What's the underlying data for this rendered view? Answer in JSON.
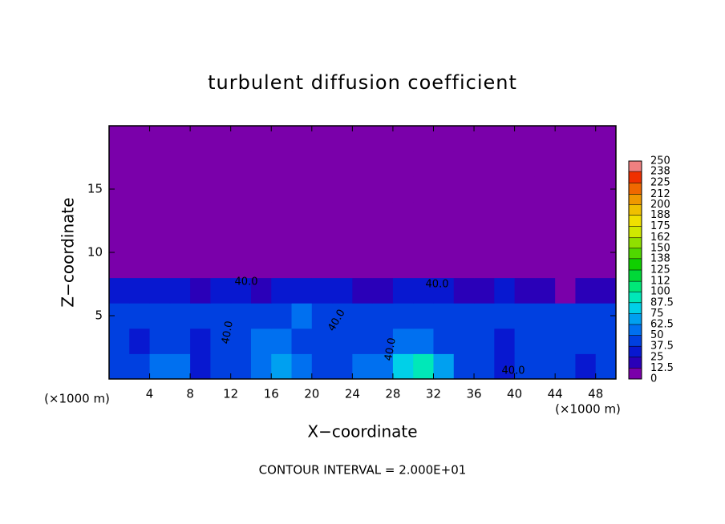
{
  "chart_data": {
    "type": "heatmap",
    "title": "turbulent diffusion coefficient",
    "x_label": "X−coordinate",
    "y_label": "Z−coordinate",
    "x_unit": "(×1000 m)",
    "y_unit": "(×1000 m)",
    "footer": "CONTOUR INTERVAL = 2.000E+01",
    "annotations": [
      "40.0",
      "40.0",
      "40.0",
      "40.0",
      "40.0",
      "40.0"
    ],
    "xlim": [
      0,
      50
    ],
    "ylim": [
      0,
      20
    ],
    "xticks": [
      4,
      8,
      12,
      16,
      20,
      24,
      28,
      32,
      36,
      40,
      44,
      48
    ],
    "yticks": [
      5,
      10,
      15
    ],
    "values": [
      [
        45,
        40,
        55,
        50,
        35,
        40,
        45,
        60,
        70,
        55,
        40,
        45,
        50,
        60,
        75,
        90,
        65,
        40,
        45,
        35,
        40,
        45,
        40,
        35,
        40
      ],
      [
        38,
        35,
        45,
        40,
        35,
        42,
        38,
        50,
        55,
        45,
        40,
        40,
        45,
        42,
        50,
        55,
        48,
        38,
        40,
        35,
        38,
        42,
        45,
        40,
        38
      ],
      [
        40,
        38,
        42,
        45,
        40,
        45,
        40,
        48,
        45,
        50,
        45,
        48,
        42,
        45,
        40,
        42,
        40,
        38,
        40,
        42,
        40,
        38,
        40,
        42,
        40
      ],
      [
        30,
        25,
        30,
        28,
        20,
        30,
        32,
        20,
        25,
        30,
        28,
        30,
        20,
        22,
        30,
        28,
        25,
        20,
        22,
        25,
        20,
        15,
        10,
        15,
        20
      ],
      [
        0,
        0,
        0,
        0,
        0,
        0,
        0,
        0,
        0,
        0,
        0,
        0,
        0,
        0,
        0,
        0,
        0,
        0,
        0,
        0,
        0,
        0,
        0,
        0,
        0
      ],
      [
        0,
        0,
        0,
        0,
        0,
        0,
        0,
        0,
        0,
        0,
        0,
        0,
        0,
        0,
        0,
        0,
        0,
        0,
        0,
        0,
        0,
        0,
        0,
        0,
        0
      ],
      [
        0,
        0,
        0,
        0,
        0,
        0,
        0,
        0,
        0,
        0,
        0,
        0,
        0,
        0,
        0,
        0,
        0,
        0,
        0,
        0,
        0,
        0,
        0,
        0,
        0
      ],
      [
        0,
        0,
        0,
        0,
        0,
        0,
        0,
        0,
        0,
        0,
        0,
        0,
        0,
        0,
        0,
        0,
        0,
        0,
        0,
        0,
        0,
        0,
        0,
        0,
        0
      ],
      [
        0,
        0,
        0,
        0,
        0,
        0,
        0,
        0,
        0,
        0,
        0,
        0,
        0,
        0,
        0,
        0,
        0,
        0,
        0,
        0,
        0,
        0,
        0,
        0,
        0
      ],
      [
        0,
        0,
        0,
        0,
        0,
        0,
        0,
        0,
        0,
        0,
        0,
        0,
        0,
        0,
        0,
        0,
        0,
        0,
        0,
        0,
        0,
        0,
        0,
        0,
        0
      ]
    ],
    "colorbar": {
      "levels": [
        0,
        12.5,
        25,
        37.5,
        50,
        62.5,
        75,
        87.5,
        100,
        112,
        125,
        138,
        150,
        162,
        175,
        188,
        200,
        212,
        225,
        238,
        250
      ],
      "colors": [
        "#7a00aa",
        "#2a00b8",
        "#0818d0",
        "#0040e0",
        "#0070f0",
        "#00a0f0",
        "#00d0e8",
        "#00e8b8",
        "#00e878",
        "#00d838",
        "#10d000",
        "#50d800",
        "#90e000",
        "#d0e800",
        "#f0e000",
        "#f0c000",
        "#f09800",
        "#f06800",
        "#f03000",
        "#f08080"
      ]
    }
  }
}
